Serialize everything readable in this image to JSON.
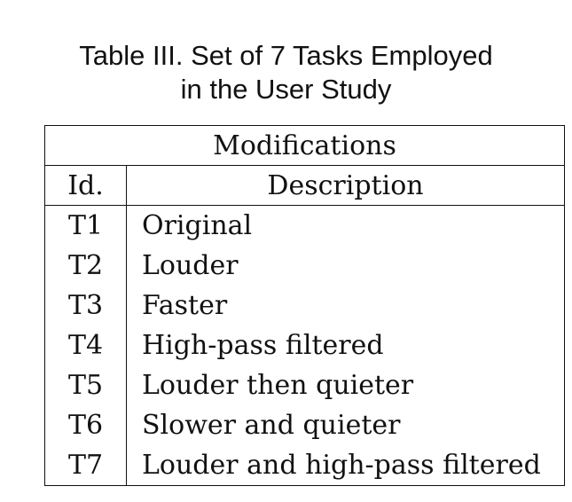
{
  "caption": {
    "line1": "Table III. Set of 7 Tasks Employed",
    "line2": "in the User Study"
  },
  "table": {
    "group_header": "Modifications",
    "columns": [
      "Id.",
      "Description"
    ],
    "rows": [
      {
        "id": "T1",
        "description": "Original"
      },
      {
        "id": "T2",
        "description": "Louder"
      },
      {
        "id": "T3",
        "description": "Faster"
      },
      {
        "id": "T4",
        "description": "High-pass filtered"
      },
      {
        "id": "T5",
        "description": "Louder then quieter"
      },
      {
        "id": "T6",
        "description": "Slower and quieter"
      },
      {
        "id": "T7",
        "description": "Louder and high-pass filtered"
      }
    ]
  }
}
